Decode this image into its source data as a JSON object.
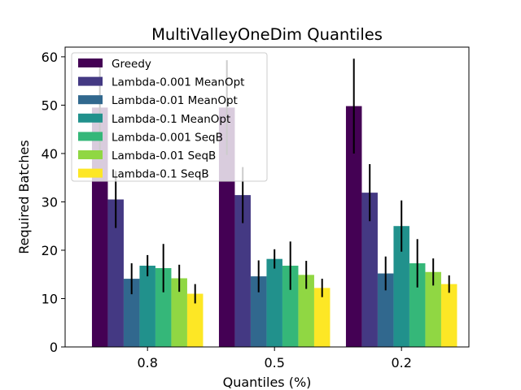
{
  "chart_data": {
    "type": "bar",
    "title": "MultiValleyOneDim Quantiles",
    "xlabel": "Quantiles (%)",
    "ylabel": "Required Batches",
    "ylim": [
      0,
      62
    ],
    "yticks": [
      0,
      10,
      20,
      30,
      40,
      50,
      60
    ],
    "legend_position": "top-left",
    "categories": [
      "0.8",
      "0.5",
      "0.2"
    ],
    "series": [
      {
        "name": "Greedy",
        "color": "#440154",
        "values": [
          49.5,
          49.5,
          49.8
        ],
        "errors": [
          10,
          9.8,
          9.8
        ]
      },
      {
        "name": "Lambda-0.001 MeanOpt",
        "color": "#443983",
        "values": [
          30.5,
          31.4,
          31.9
        ],
        "errors": [
          5.9,
          5.8,
          5.9
        ]
      },
      {
        "name": "Lambda-0.01 MeanOpt",
        "color": "#31688e",
        "values": [
          14.1,
          14.6,
          15.2
        ],
        "errors": [
          3.2,
          3.3,
          3.5
        ]
      },
      {
        "name": "Lambda-0.1 MeanOpt",
        "color": "#21918c",
        "values": [
          16.8,
          18.2,
          25.0
        ],
        "errors": [
          2.2,
          2.0,
          5.3
        ]
      },
      {
        "name": "Lambda-0.001 SeqB",
        "color": "#35b779",
        "values": [
          16.3,
          16.8,
          17.3
        ],
        "errors": [
          5.0,
          5.0,
          5.0
        ]
      },
      {
        "name": "Lambda-0.01 SeqB",
        "color": "#90d743",
        "values": [
          14.2,
          14.9,
          15.5
        ],
        "errors": [
          2.8,
          2.9,
          2.8
        ]
      },
      {
        "name": "Lambda-0.1 SeqB",
        "color": "#fde725",
        "values": [
          11.0,
          12.2,
          13.0
        ],
        "errors": [
          2.0,
          1.9,
          1.8
        ]
      }
    ]
  }
}
